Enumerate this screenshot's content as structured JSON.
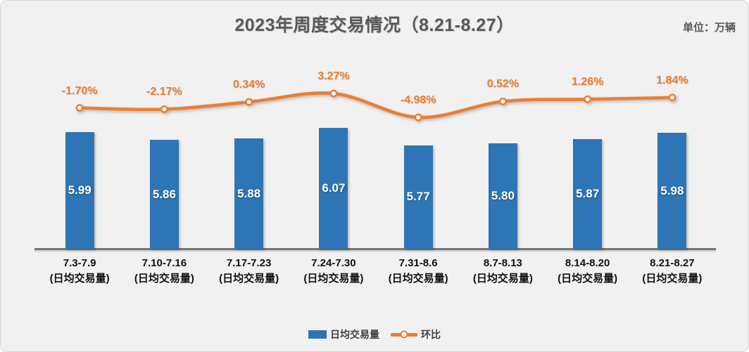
{
  "header": {
    "title": "2023年周度交易情况（8.21-8.27）",
    "unit_label": "单位：万辆"
  },
  "chart_data": {
    "type": "combo",
    "title": "2023年周度交易情况（8.21-8.27）",
    "unit": "万辆",
    "categories": [
      "7.3-7.9",
      "7.10-7.16",
      "7.17-7.23",
      "7.24-7.30",
      "7.31-8.6",
      "8.7-8.13",
      "8.14-8.20",
      "8.21-8.27"
    ],
    "category_sublabel": "(日均交易量)",
    "series": [
      {
        "name": "日均交易量",
        "type": "bar",
        "color": "#2E75B6",
        "values": [
          5.99,
          5.86,
          5.88,
          6.07,
          5.77,
          5.8,
          5.87,
          5.98
        ],
        "labels": [
          "5.99",
          "5.86",
          "5.88",
          "6.07",
          "5.77",
          "5.80",
          "5.87",
          "5.98"
        ],
        "axis_min": 4.0
      },
      {
        "name": "环比",
        "type": "line",
        "color": "#ED7D31",
        "values": [
          -1.7,
          -2.17,
          0.34,
          3.27,
          -4.98,
          0.52,
          1.26,
          1.84
        ],
        "labels": [
          "-1.70%",
          "-2.17%",
          "0.34%",
          "3.27%",
          "-4.98%",
          "0.52%",
          "1.26%",
          "1.84%"
        ]
      }
    ],
    "legend_position": "bottom",
    "grid": false
  },
  "legend": {
    "bar_label": "日均交易量",
    "line_label": "环比"
  },
  "colors": {
    "bar": "#2E75B6",
    "line": "#ED7D31",
    "axis_line": "#757575",
    "background": "#F1F1F2",
    "title_text": "#595959",
    "percent_text": "#ED7D31",
    "bar_value_text": "#FFFFFF",
    "category_text": "#111111",
    "legend_text": "#404040"
  }
}
